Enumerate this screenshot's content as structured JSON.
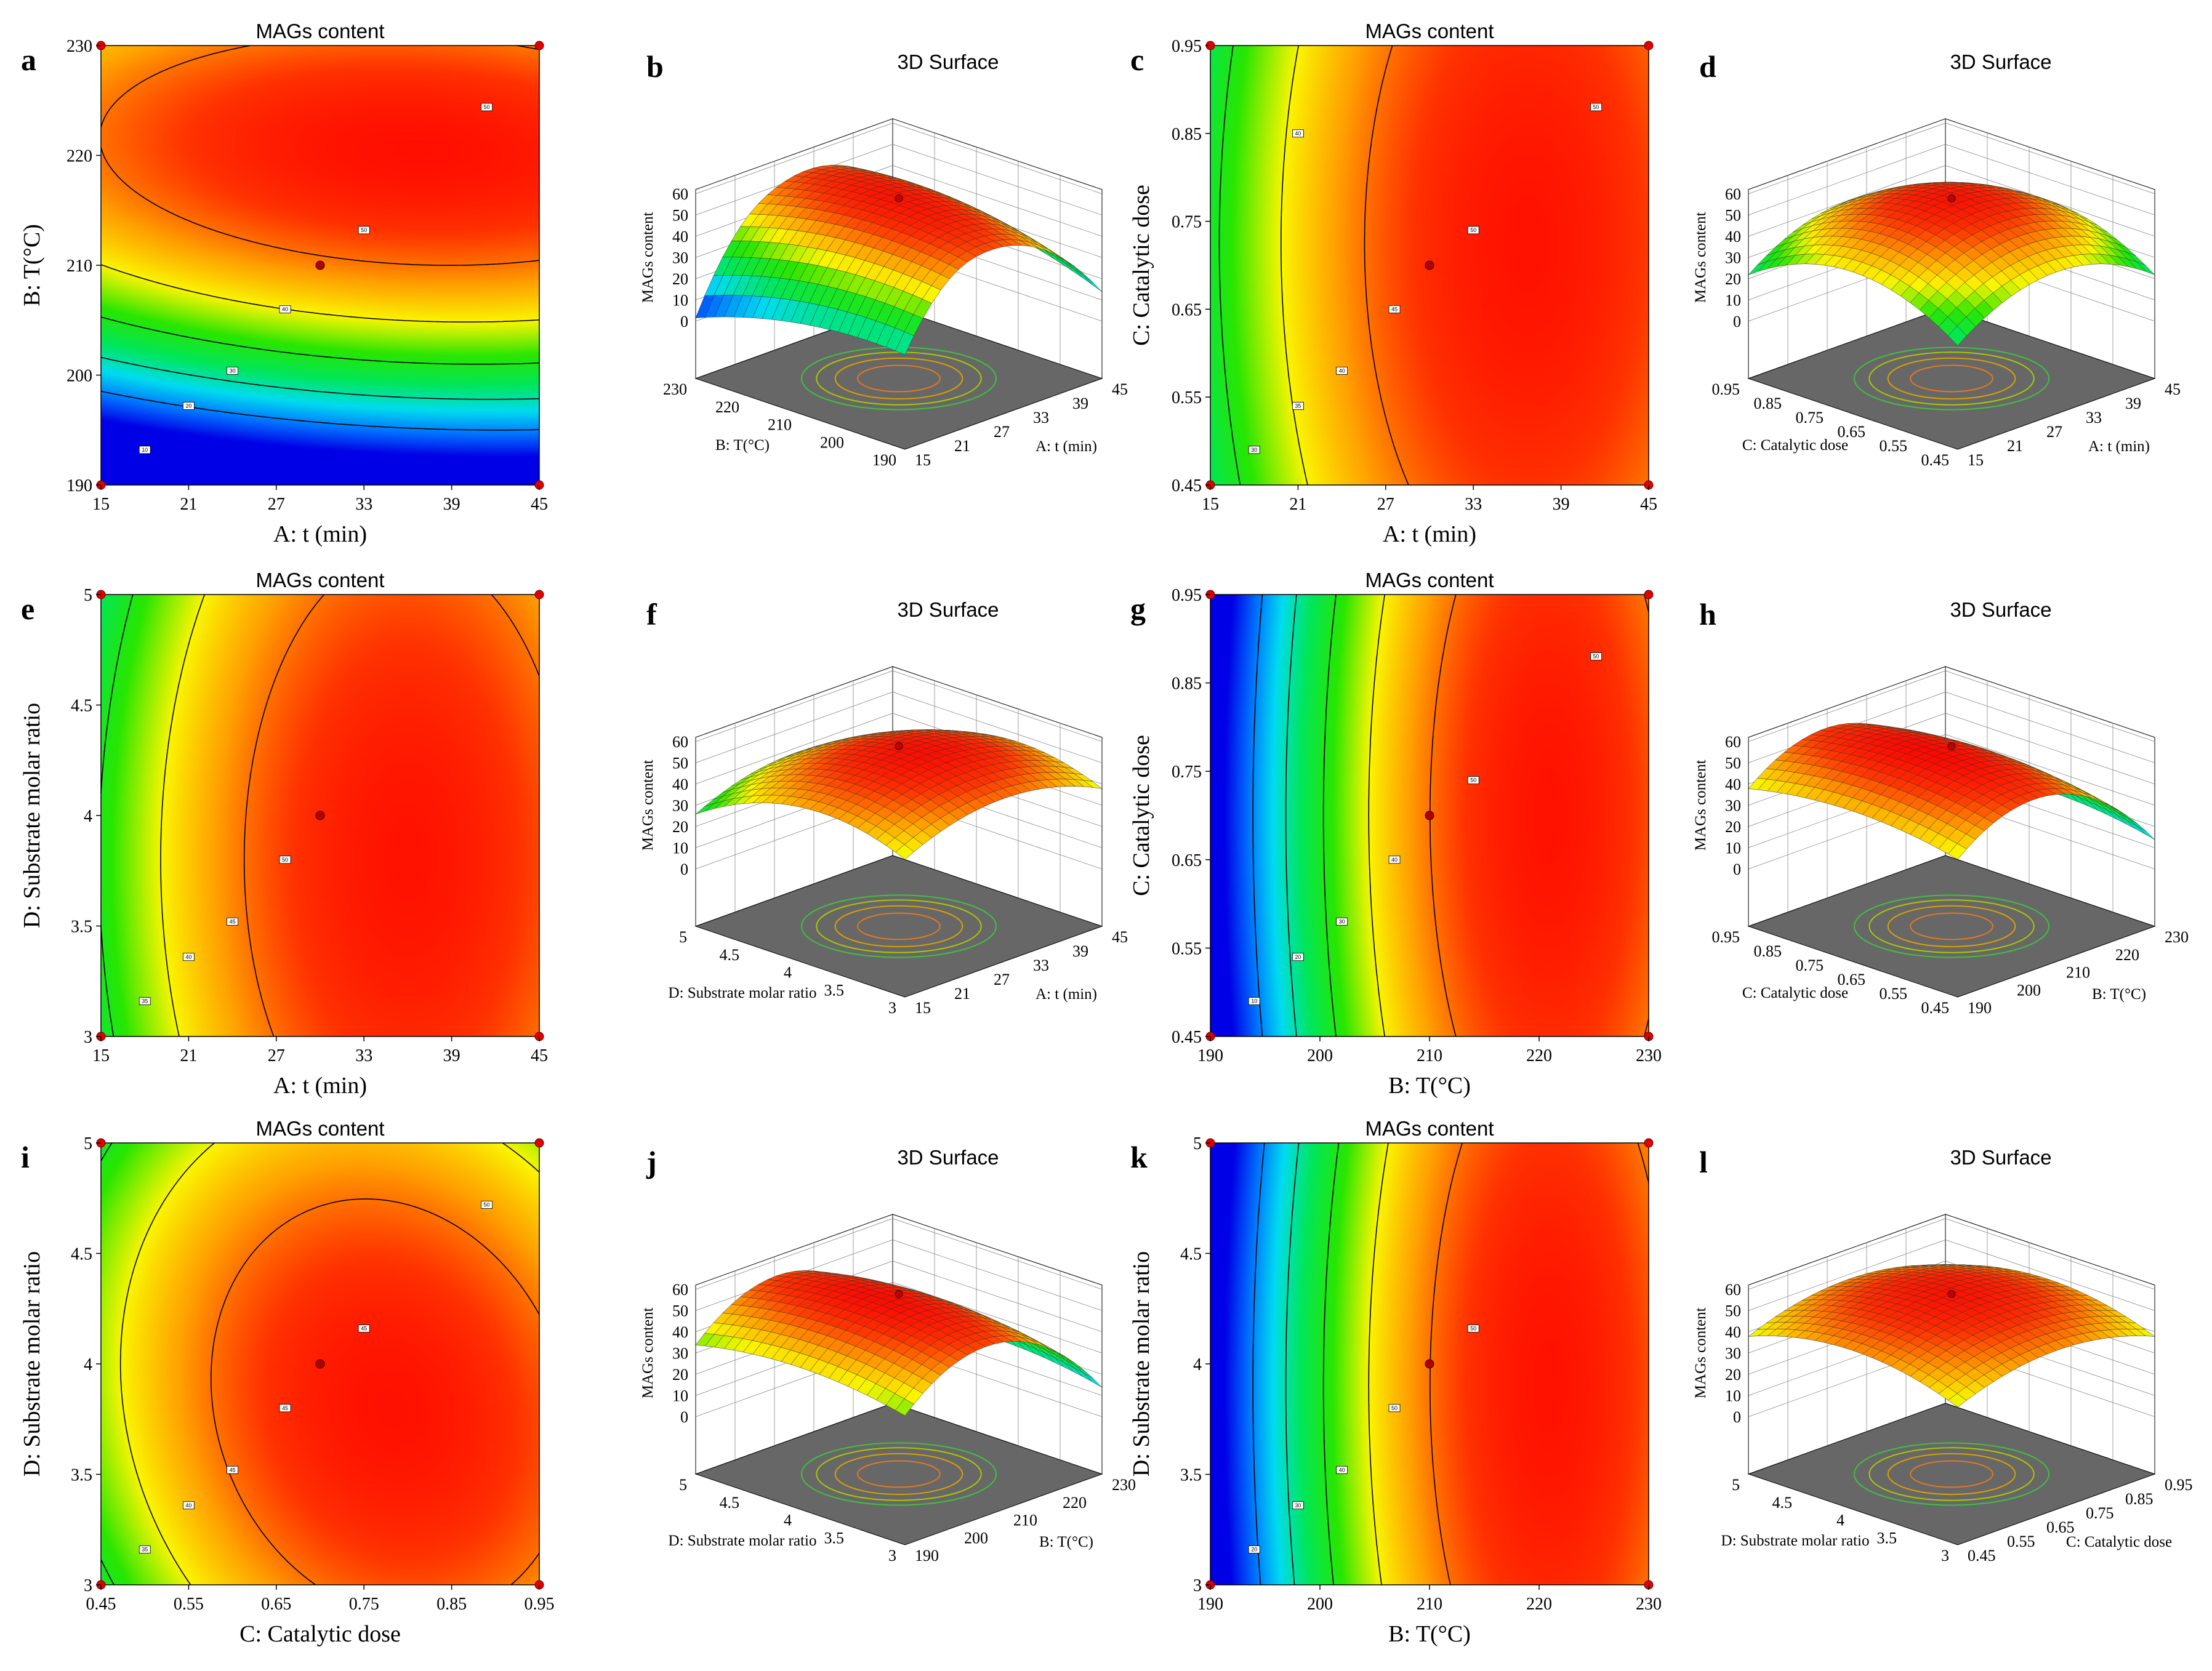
{
  "figure": {
    "panels": [
      {
        "id": "a",
        "type": "contour",
        "title": "MAGs content",
        "xlabel": "A: t (min)",
        "ylabel": "B: T(°C)",
        "xticks": [
          "15",
          "21",
          "27",
          "33",
          "39",
          "45"
        ],
        "yticks": [
          "190",
          "200",
          "210",
          "220",
          "230"
        ],
        "xlim": [
          15,
          45
        ],
        "ylim": [
          190,
          230
        ],
        "center": [
          30,
          210
        ],
        "contour_labels": [
          "10",
          "20",
          "30",
          "40",
          "50",
          "50"
        ]
      },
      {
        "id": "b",
        "type": "surface",
        "title": "3D Surface",
        "zlabel": "MAGs content",
        "zticks": [
          "0",
          "10",
          "20",
          "30",
          "40",
          "50",
          "60"
        ],
        "left_axis_label": "B: T(°C)",
        "left_ticks": [
          "190",
          "200",
          "210",
          "220",
          "230"
        ],
        "right_axis_label": "A: t (min)",
        "right_ticks": [
          "15",
          "21",
          "27",
          "33",
          "39",
          "45"
        ],
        "peak": 57.8,
        "shape": "t_T"
      },
      {
        "id": "c",
        "type": "contour",
        "title": "MAGs content",
        "xlabel": "A: t (min)",
        "ylabel": "C: Catalytic dose",
        "xticks": [
          "15",
          "21",
          "27",
          "33",
          "39",
          "45"
        ],
        "yticks": [
          "0.45",
          "0.55",
          "0.65",
          "0.75",
          "0.85",
          "0.95"
        ],
        "xlim": [
          15,
          45
        ],
        "ylim": [
          0.45,
          0.95
        ],
        "center": [
          30,
          0.7
        ],
        "contour_labels": [
          "30",
          "35",
          "40",
          "45",
          "50",
          "50",
          "40"
        ]
      },
      {
        "id": "d",
        "type": "surface",
        "title": "3D Surface",
        "zlabel": "MAGs content",
        "zticks": [
          "0",
          "10",
          "20",
          "30",
          "40",
          "50",
          "60"
        ],
        "left_axis_label": "C: Catalytic dose",
        "left_ticks": [
          "0.45",
          "0.55",
          "0.65",
          "0.75",
          "0.85",
          "0.95"
        ],
        "right_axis_label": "A: t (min)",
        "right_ticks": [
          "15",
          "21",
          "27",
          "33",
          "39",
          "45"
        ],
        "peak": 57.8,
        "shape": "dome"
      },
      {
        "id": "e",
        "type": "contour",
        "title": "MAGs content",
        "xlabel": "A: t (min)",
        "ylabel": "D: Substrate molar ratio",
        "xticks": [
          "15",
          "21",
          "27",
          "33",
          "39",
          "45"
        ],
        "yticks": [
          "3",
          "3.5",
          "4",
          "4.5",
          "5"
        ],
        "xlim": [
          15,
          45
        ],
        "ylim": [
          3,
          5
        ],
        "center": [
          30,
          4
        ],
        "contour_labels": [
          "35",
          "40",
          "45",
          "50"
        ]
      },
      {
        "id": "f",
        "type": "surface",
        "title": "3D Surface",
        "zlabel": "MAGs content",
        "zticks": [
          "0",
          "10",
          "20",
          "30",
          "40",
          "50",
          "60"
        ],
        "left_axis_label": "D: Substrate molar ratio",
        "left_ticks": [
          "3",
          "3.5",
          "4",
          "4.5",
          "5"
        ],
        "right_axis_label": "A: t (min)",
        "right_ticks": [
          "15",
          "21",
          "27",
          "33",
          "39",
          "45"
        ],
        "peak": 57.8,
        "shape": "dome"
      },
      {
        "id": "g",
        "type": "contour",
        "title": "MAGs content",
        "xlabel": "B: T(°C)",
        "ylabel": "C: Catalytic dose",
        "xticks": [
          "190",
          "200",
          "210",
          "220",
          "230"
        ],
        "yticks": [
          "0.45",
          "0.55",
          "0.65",
          "0.75",
          "0.85",
          "0.95"
        ],
        "xlim": [
          190,
          230
        ],
        "ylim": [
          0.45,
          0.95
        ],
        "center": [
          210,
          0.7
        ],
        "contour_labels": [
          "10",
          "20",
          "30",
          "40",
          "50",
          "50"
        ]
      },
      {
        "id": "h",
        "type": "surface",
        "title": "3D Surface",
        "zlabel": "MAGs content",
        "zticks": [
          "0",
          "10",
          "20",
          "30",
          "40",
          "50",
          "60"
        ],
        "left_axis_label": "C: Catalytic dose",
        "left_ticks": [
          "0.45",
          "0.55",
          "0.65",
          "0.75",
          "0.85",
          "0.95"
        ],
        "right_axis_label": "B: T(°C)",
        "right_ticks": [
          "190",
          "200",
          "210",
          "220",
          "230"
        ],
        "peak": 57.8,
        "shape": "T_only"
      },
      {
        "id": "i",
        "type": "contour",
        "title": "MAGs content",
        "xlabel": "C: Catalytic dose",
        "ylabel": "D: Substrate molar ratio",
        "xticks": [
          "0.45",
          "0.55",
          "0.65",
          "0.75",
          "0.85",
          "0.95"
        ],
        "yticks": [
          "3",
          "3.5",
          "4",
          "4.5",
          "5"
        ],
        "xlim": [
          0.45,
          0.95
        ],
        "ylim": [
          3,
          5
        ],
        "center": [
          0.7,
          4
        ],
        "contour_labels": [
          "35",
          "40",
          "45",
          "45",
          "45",
          "50"
        ]
      },
      {
        "id": "j",
        "type": "surface",
        "title": "3D Surface",
        "zlabel": "MAGs content",
        "zticks": [
          "0",
          "10",
          "20",
          "30",
          "40",
          "50",
          "60"
        ],
        "left_axis_label": "D: Substrate molar ratio",
        "left_ticks": [
          "3",
          "3.5",
          "4",
          "4.5",
          "5"
        ],
        "right_axis_label": "B: T(°C)",
        "right_ticks": [
          "190",
          "200",
          "210",
          "220",
          "230"
        ],
        "peak": 57.8,
        "shape": "T_only"
      },
      {
        "id": "k",
        "type": "contour",
        "title": "MAGs content",
        "xlabel": "B: T(°C)",
        "ylabel": "D: Substrate molar ratio",
        "xticks": [
          "190",
          "200",
          "210",
          "220",
          "230"
        ],
        "yticks": [
          "3",
          "3.5",
          "4",
          "4.5",
          "5"
        ],
        "xlim": [
          190,
          230
        ],
        "ylim": [
          3,
          5
        ],
        "center": [
          210,
          4
        ],
        "contour_labels": [
          "20",
          "30",
          "40",
          "50",
          "50"
        ]
      },
      {
        "id": "l",
        "type": "surface",
        "title": "3D Surface",
        "zlabel": "MAGs content",
        "zticks": [
          "0",
          "10",
          "20",
          "30",
          "40",
          "50",
          "60"
        ],
        "left_axis_label": "D: Substrate molar ratio",
        "left_ticks": [
          "3",
          "3.5",
          "4",
          "4.5",
          "5"
        ],
        "right_axis_label": "C: Catalytic dose",
        "right_ticks": [
          "0.45",
          "0.55",
          "0.65",
          "0.75",
          "0.85",
          "0.95"
        ],
        "peak": 57.8,
        "shape": "dome"
      }
    ]
  },
  "chart_data": [
    {
      "type": "heatmap",
      "panel": "a",
      "title": "MAGs content",
      "xlabel": "A: t (min)",
      "ylabel": "B: T(°C)",
      "xlim": [
        15,
        45
      ],
      "ylim": [
        190,
        230
      ],
      "contour_levels": [
        10,
        20,
        30,
        40,
        50
      ],
      "design_center": {
        "x": 30,
        "y": 210
      }
    },
    {
      "type": "surface",
      "panel": "b",
      "title": "3D Surface",
      "zlabel": "MAGs content",
      "zlim": [
        0,
        60
      ],
      "x_axis": "A: t (min)",
      "y_axis": "B: T(°C)"
    },
    {
      "type": "heatmap",
      "panel": "c",
      "title": "MAGs content",
      "xlabel": "A: t (min)",
      "ylabel": "C: Catalytic dose",
      "xlim": [
        15,
        45
      ],
      "ylim": [
        0.45,
        0.95
      ],
      "contour_levels": [
        30,
        35,
        40,
        45,
        50
      ],
      "design_center": {
        "x": 30,
        "y": 0.7
      }
    },
    {
      "type": "surface",
      "panel": "d",
      "title": "3D Surface",
      "zlabel": "MAGs content",
      "zlim": [
        0,
        60
      ],
      "x_axis": "A: t (min)",
      "y_axis": "C: Catalytic dose"
    },
    {
      "type": "heatmap",
      "panel": "e",
      "title": "MAGs content",
      "xlabel": "A: t (min)",
      "ylabel": "D: Substrate molar ratio",
      "xlim": [
        15,
        45
      ],
      "ylim": [
        3,
        5
      ],
      "contour_levels": [
        35,
        40,
        45,
        50
      ],
      "design_center": {
        "x": 30,
        "y": 4
      }
    },
    {
      "type": "surface",
      "panel": "f",
      "title": "3D Surface",
      "zlabel": "MAGs content",
      "zlim": [
        0,
        60
      ],
      "x_axis": "A: t (min)",
      "y_axis": "D: Substrate molar ratio"
    },
    {
      "type": "heatmap",
      "panel": "g",
      "title": "MAGs content",
      "xlabel": "B: T(°C)",
      "ylabel": "C: Catalytic dose",
      "xlim": [
        190,
        230
      ],
      "ylim": [
        0.45,
        0.95
      ],
      "contour_levels": [
        10,
        20,
        30,
        40,
        50
      ],
      "design_center": {
        "x": 210,
        "y": 0.7
      }
    },
    {
      "type": "surface",
      "panel": "h",
      "title": "3D Surface",
      "zlabel": "MAGs content",
      "zlim": [
        0,
        60
      ],
      "x_axis": "B: T(°C)",
      "y_axis": "C: Catalytic dose"
    },
    {
      "type": "heatmap",
      "panel": "i",
      "title": "MAGs content",
      "xlabel": "C: Catalytic dose",
      "ylabel": "D: Substrate molar ratio",
      "xlim": [
        0.45,
        0.95
      ],
      "ylim": [
        3,
        5
      ],
      "contour_levels": [
        35,
        40,
        45,
        50
      ],
      "design_center": {
        "x": 0.7,
        "y": 4
      }
    },
    {
      "type": "surface",
      "panel": "j",
      "title": "3D Surface",
      "zlabel": "MAGs content",
      "zlim": [
        0,
        60
      ],
      "x_axis": "B: T(°C)",
      "y_axis": "D: Substrate molar ratio"
    },
    {
      "type": "heatmap",
      "panel": "k",
      "title": "MAGs content",
      "xlabel": "B: T(°C)",
      "ylabel": "D: Substrate molar ratio",
      "xlim": [
        190,
        230
      ],
      "ylim": [
        3,
        5
      ],
      "contour_levels": [
        20,
        30,
        40,
        50
      ],
      "design_center": {
        "x": 210,
        "y": 4
      }
    },
    {
      "type": "surface",
      "panel": "l",
      "title": "3D Surface",
      "zlabel": "MAGs content",
      "zlim": [
        0,
        60
      ],
      "x_axis": "C: Catalytic dose",
      "y_axis": "D: Substrate molar ratio"
    }
  ]
}
